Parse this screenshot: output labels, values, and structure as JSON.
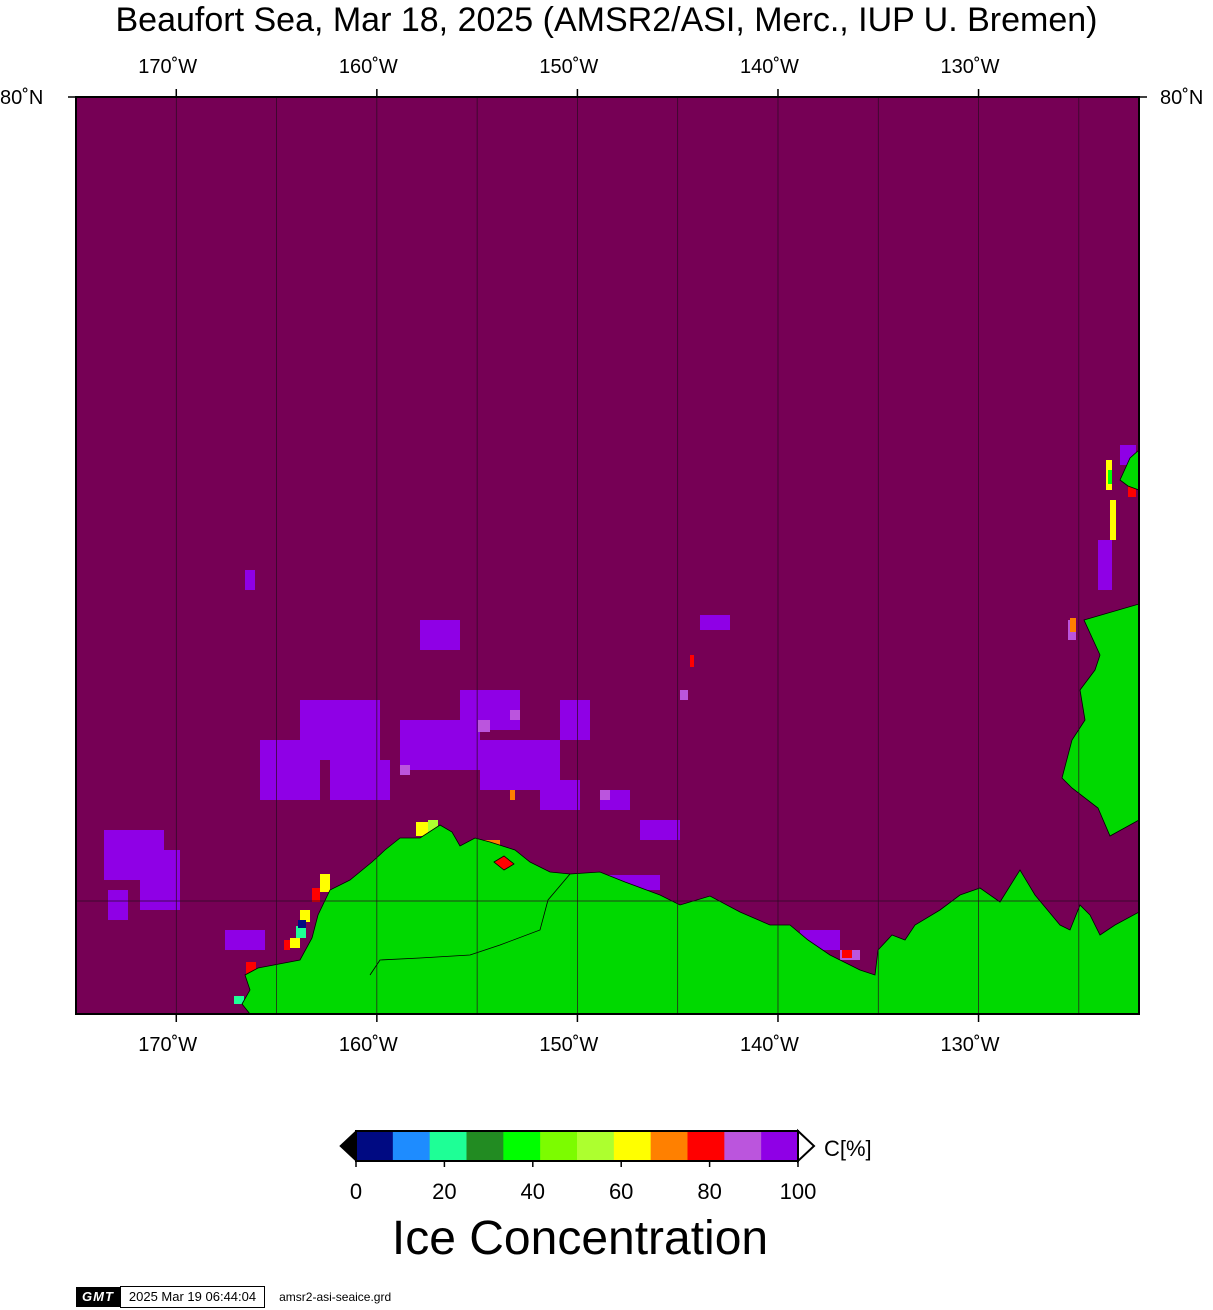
{
  "title": "Beaufort Sea, Mar 18, 2025 (AMSR2/ASI, Merc., IUP U. Bremen)",
  "map": {
    "longitude_labels": [
      "170˚W",
      "160˚W",
      "150˚W",
      "140˚W",
      "130˚W"
    ],
    "longitudes": [
      -170,
      -160,
      -150,
      -140,
      -130
    ],
    "lon_range": [
      -175,
      -122
    ],
    "latitude_label": "80˚N",
    "ocean_color": "#760055",
    "land_color": "#00d900",
    "grid_color": "#2a0a20"
  },
  "colorbar": {
    "colors": [
      "#000a82",
      "#1e8cff",
      "#1eff96",
      "#228b22",
      "#00ff00",
      "#7cfc00",
      "#adff2f",
      "#ffff00",
      "#ff8000",
      "#ff0000",
      "#bb55dd",
      "#8f00e6"
    ],
    "tick_labels": [
      "0",
      "20",
      "40",
      "60",
      "80",
      "100"
    ],
    "tick_values": [
      0,
      20,
      40,
      60,
      80,
      100
    ],
    "unit": "C[%]",
    "label": "Ice Concentration"
  },
  "footer": {
    "logo": "GMT",
    "timestamp": "2025 Mar 19 06:44:04",
    "filename": "amsr2-asi-seaice.grd"
  }
}
